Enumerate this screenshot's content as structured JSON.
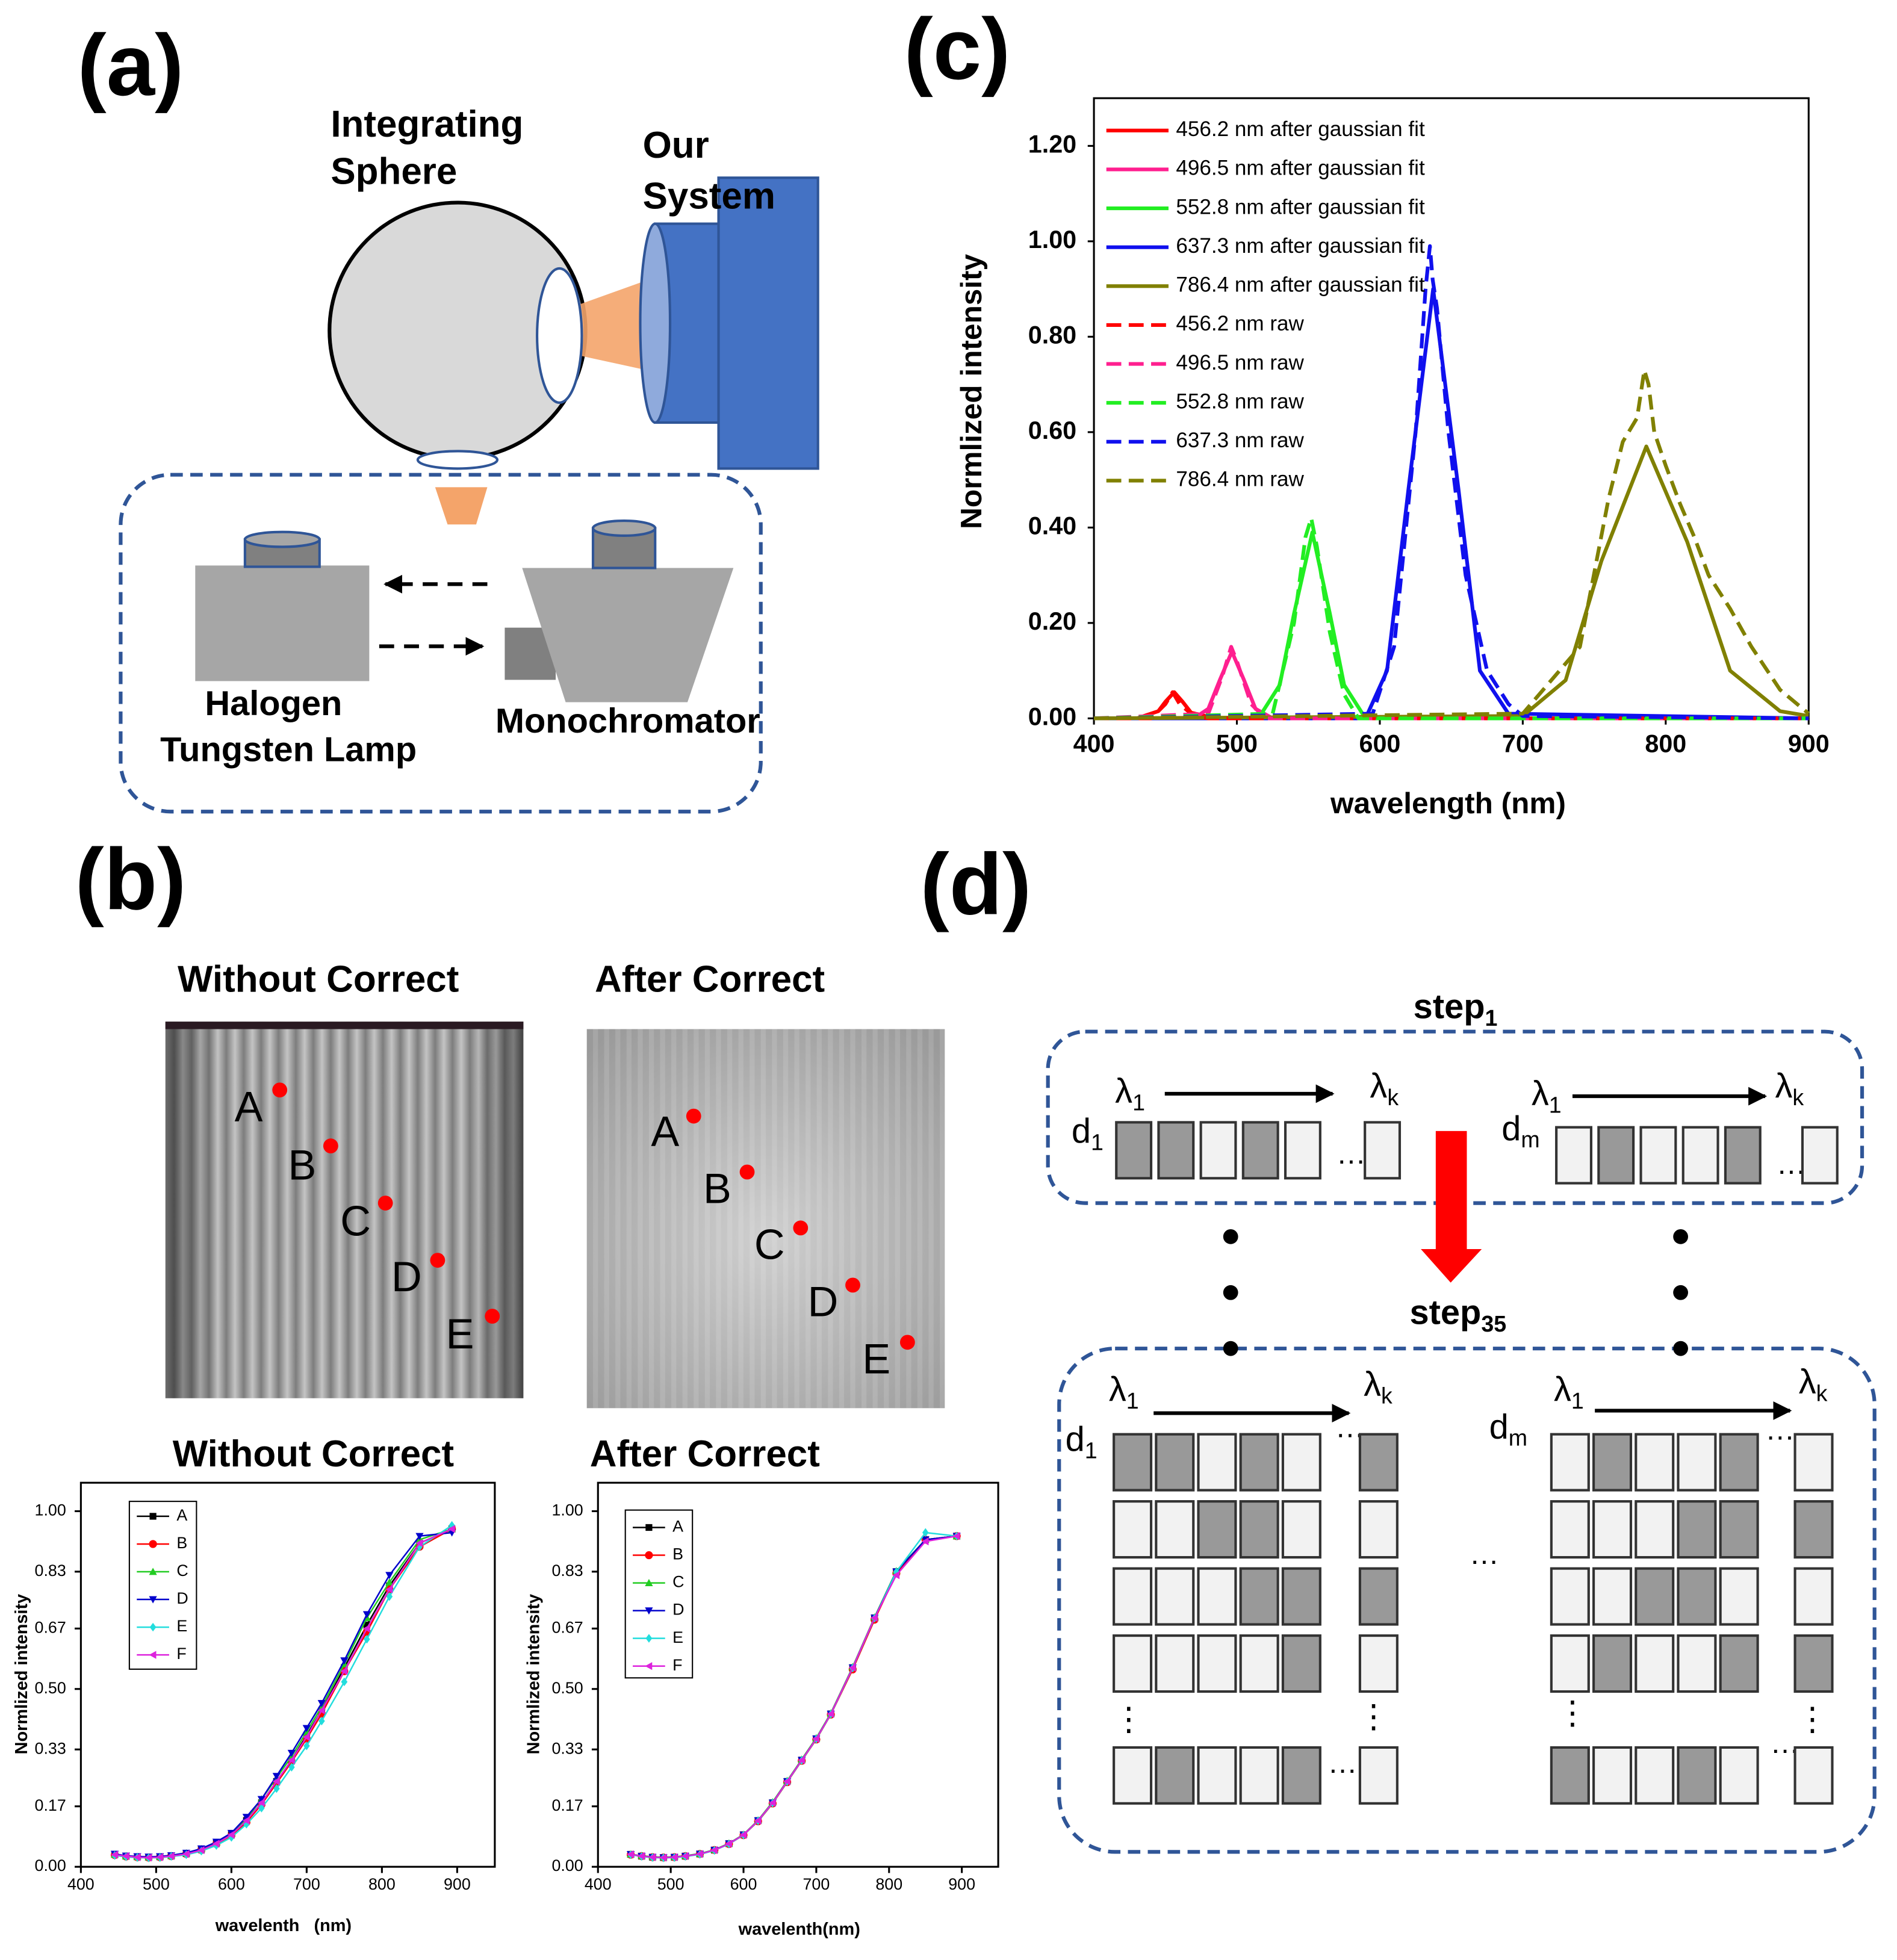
{
  "panel_labels": [
    "(a)",
    "(b)",
    "(c)",
    "(d)"
  ],
  "setup": {
    "sphere": [
      "Integrating",
      "Sphere"
    ],
    "system": [
      "Our",
      "System"
    ],
    "lamp": [
      "Halogen",
      "Tungsten Lamp"
    ],
    "monochromator": "Monochromator"
  },
  "images": [
    {
      "title": "Without Correct",
      "points": [
        "A",
        "B",
        "C",
        "D",
        "E"
      ]
    },
    {
      "title": "After Correct",
      "points": [
        "A",
        "B",
        "C",
        "D",
        "E"
      ]
    }
  ],
  "algorithm": {
    "steps": [
      {
        "text": "step",
        "sub": "1"
      },
      {
        "text": "step",
        "sub": "35"
      }
    ],
    "lambda": "λ",
    "first": "1",
    "last": "k",
    "d": "d",
    "d_last": "m",
    "ellipsis": "…",
    "vdots": "⋮"
  },
  "chart_data": [
    {
      "type": "line",
      "x_label": "wavelength (nm)",
      "y_label": "Normlized intensity",
      "xlim": [
        400,
        900
      ],
      "ylim": [
        0,
        1.3
      ],
      "xticks": [
        400,
        500,
        600,
        700,
        800,
        900
      ],
      "yticks": [
        {
          "value": 0,
          "label": "0.00"
        },
        {
          "value": 0.2,
          "label": "0.20"
        },
        {
          "value": 0.4,
          "label": "0.40"
        },
        {
          "value": 0.6,
          "label": "0.60"
        },
        {
          "value": 0.8,
          "label": "0.80"
        },
        {
          "value": 1,
          "label": "1.00"
        },
        {
          "value": 1.2,
          "label": "1.20"
        }
      ],
      "legend": "upper left",
      "series": [
        {
          "name": "456.2 nm after gaussian fit",
          "color": "#ff0000",
          "style": "solid",
          "x": [
            400,
            430,
            445,
            450,
            456.2,
            462,
            468,
            485,
            900
          ],
          "values": [
            0,
            0,
            0.015,
            0.035,
            0.055,
            0.035,
            0.012,
            0,
            0
          ]
        },
        {
          "name": "496.5 nm after gaussian fit",
          "color": "#ff1f8f",
          "style": "solid",
          "x": [
            400,
            470,
            480,
            488,
            496.5,
            505,
            513,
            525,
            900
          ],
          "values": [
            0,
            0,
            0.02,
            0.08,
            0.14,
            0.08,
            0.02,
            0,
            0
          ]
        },
        {
          "name": "552.8 nm after gaussian fit",
          "color": "#22ee22",
          "style": "solid",
          "x": [
            400,
            515,
            530,
            540,
            552.8,
            565,
            575,
            590,
            900
          ],
          "values": [
            0,
            0,
            0.07,
            0.22,
            0.39,
            0.22,
            0.07,
            0,
            0
          ]
        },
        {
          "name": "637.3 nm after gaussian fit",
          "color": "#1010ee",
          "style": "solid",
          "x": [
            400,
            590,
            605,
            620,
            637.3,
            655,
            670,
            690,
            900
          ],
          "values": [
            0,
            0,
            0.1,
            0.48,
            0.9,
            0.48,
            0.1,
            0.01,
            0
          ]
        },
        {
          "name": "786.4 nm after gaussian fit",
          "color": "#808000",
          "style": "solid",
          "x": [
            400,
            700,
            730,
            755,
            786.4,
            815,
            845,
            880,
            900
          ],
          "values": [
            0,
            0.005,
            0.08,
            0.33,
            0.57,
            0.37,
            0.1,
            0.015,
            0.005
          ]
        },
        {
          "name": "456.2 nm raw",
          "color": "#ff0000",
          "style": "dashed",
          "x": [
            400,
            440,
            450,
            455,
            460,
            470,
            480,
            900
          ],
          "values": [
            0,
            0,
            0.03,
            0.055,
            0.03,
            0.005,
            0,
            0
          ]
        },
        {
          "name": "496.5 nm raw",
          "color": "#ff1f8f",
          "style": "dashed",
          "x": [
            400,
            480,
            490,
            496,
            500,
            510,
            520,
            900
          ],
          "values": [
            0,
            0.01,
            0.09,
            0.15,
            0.12,
            0.03,
            0,
            0
          ]
        },
        {
          "name": "552.8 nm raw",
          "color": "#22ee22",
          "style": "dashed",
          "x": [
            400,
            525,
            540,
            548,
            552,
            556,
            565,
            575,
            585,
            900
          ],
          "values": [
            0,
            0.01,
            0.2,
            0.38,
            0.42,
            0.36,
            0.18,
            0.05,
            0,
            0
          ]
        },
        {
          "name": "637.3 nm raw",
          "color": "#1010ee",
          "style": "dashed",
          "x": [
            400,
            595,
            610,
            625,
            632,
            635,
            637,
            640,
            648,
            660,
            675,
            690,
            700,
            900
          ],
          "values": [
            0,
            0.01,
            0.15,
            0.6,
            0.9,
            0.99,
            0.92,
            0.86,
            0.6,
            0.3,
            0.1,
            0.03,
            0.005,
            0
          ]
        },
        {
          "name": "786.4 nm raw",
          "color": "#808000",
          "style": "dashed",
          "x": [
            400,
            700,
            740,
            760,
            770,
            780,
            785,
            788,
            792,
            800,
            810,
            820,
            830,
            845,
            860,
            880,
            900
          ],
          "values": [
            0,
            0.01,
            0.15,
            0.46,
            0.58,
            0.63,
            0.73,
            0.7,
            0.6,
            0.53,
            0.45,
            0.38,
            0.3,
            0.23,
            0.15,
            0.06,
            0.01
          ]
        }
      ]
    },
    {
      "type": "line",
      "title": "Without Correct",
      "x_label": "wavelenth   (nm)",
      "y_label": "Normlized intensity",
      "xlim": [
        400,
        950
      ],
      "ylim": [
        0,
        1.08
      ],
      "xticks": [
        400,
        500,
        600,
        700,
        800,
        900
      ],
      "yticks": [
        {
          "value": 0,
          "label": "0.00"
        },
        0.17,
        0.33,
        {
          "value": 0.5,
          "label": "0.50"
        },
        0.67,
        0.83,
        {
          "value": 1,
          "label": "1.00"
        }
      ],
      "legend": "upper left",
      "x": [
        445,
        460,
        475,
        490,
        505,
        520,
        540,
        560,
        580,
        600,
        620,
        640,
        660,
        680,
        700,
        720,
        750,
        780,
        810,
        850,
        893
      ],
      "series": [
        {
          "name": "A",
          "color": "#000000",
          "marker": "square",
          "values": [
            0.035,
            0.03,
            0.028,
            0.027,
            0.028,
            0.031,
            0.037,
            0.048,
            0.066,
            0.09,
            0.13,
            0.18,
            0.24,
            0.3,
            0.37,
            0.44,
            0.56,
            0.68,
            0.79,
            0.91,
            0.95
          ]
        },
        {
          "name": "B",
          "color": "#ff0000",
          "marker": "circle",
          "values": [
            0.033,
            0.029,
            0.027,
            0.026,
            0.027,
            0.03,
            0.036,
            0.047,
            0.064,
            0.088,
            0.125,
            0.175,
            0.235,
            0.295,
            0.36,
            0.43,
            0.55,
            0.66,
            0.78,
            0.9,
            0.95
          ]
        },
        {
          "name": "C",
          "color": "#22cc22",
          "marker": "triangle-up",
          "values": [
            0.034,
            0.03,
            0.028,
            0.027,
            0.028,
            0.031,
            0.038,
            0.05,
            0.068,
            0.093,
            0.135,
            0.19,
            0.25,
            0.31,
            0.38,
            0.45,
            0.57,
            0.7,
            0.8,
            0.92,
            0.95
          ]
        },
        {
          "name": "D",
          "color": "#0000cc",
          "marker": "triangle-down",
          "values": [
            0.036,
            0.031,
            0.029,
            0.028,
            0.029,
            0.032,
            0.039,
            0.051,
            0.07,
            0.095,
            0.14,
            0.19,
            0.255,
            0.32,
            0.39,
            0.46,
            0.58,
            0.71,
            0.82,
            0.93,
            0.94
          ]
        },
        {
          "name": "E",
          "color": "#22dddd",
          "marker": "diamond",
          "values": [
            0.032,
            0.028,
            0.026,
            0.025,
            0.026,
            0.029,
            0.034,
            0.044,
            0.06,
            0.083,
            0.12,
            0.165,
            0.22,
            0.28,
            0.34,
            0.41,
            0.52,
            0.64,
            0.76,
            0.9,
            0.96
          ]
        },
        {
          "name": "F",
          "color": "#dd22dd",
          "marker": "triangle-left",
          "values": [
            0.034,
            0.03,
            0.027,
            0.026,
            0.027,
            0.03,
            0.036,
            0.047,
            0.065,
            0.09,
            0.13,
            0.18,
            0.24,
            0.3,
            0.365,
            0.44,
            0.55,
            0.67,
            0.78,
            0.91,
            0.95
          ]
        }
      ]
    },
    {
      "type": "line",
      "title": "After Correct",
      "x_label": "wavelenth(nm)",
      "y_label": "Normlized intensity",
      "xlim": [
        400,
        950
      ],
      "ylim": [
        0,
        1.08
      ],
      "xticks": [
        400,
        500,
        600,
        700,
        800,
        900
      ],
      "yticks": [
        {
          "value": 0,
          "label": "0.00"
        },
        0.17,
        0.33,
        {
          "value": 0.5,
          "label": "0.50"
        },
        0.67,
        0.83,
        {
          "value": 1,
          "label": "1.00"
        }
      ],
      "legend": "upper left",
      "x": [
        445,
        460,
        475,
        490,
        505,
        520,
        540,
        560,
        580,
        600,
        620,
        640,
        660,
        680,
        700,
        720,
        750,
        780,
        810,
        850,
        893
      ],
      "series": [
        {
          "name": "A",
          "color": "#000000",
          "marker": "square",
          "values": [
            0.035,
            0.03,
            0.027,
            0.026,
            0.027,
            0.03,
            0.036,
            0.047,
            0.065,
            0.09,
            0.13,
            0.18,
            0.24,
            0.3,
            0.36,
            0.43,
            0.56,
            0.7,
            0.83,
            0.92,
            0.93
          ]
        },
        {
          "name": "B",
          "color": "#ff0000",
          "marker": "circle",
          "values": [
            0.034,
            0.03,
            0.027,
            0.026,
            0.027,
            0.03,
            0.036,
            0.047,
            0.064,
            0.089,
            0.128,
            0.178,
            0.238,
            0.298,
            0.358,
            0.428,
            0.555,
            0.695,
            0.825,
            0.92,
            0.93
          ]
        },
        {
          "name": "C",
          "color": "#22cc22",
          "marker": "triangle-up",
          "values": [
            0.035,
            0.031,
            0.028,
            0.027,
            0.028,
            0.031,
            0.037,
            0.048,
            0.066,
            0.091,
            0.131,
            0.182,
            0.242,
            0.302,
            0.362,
            0.432,
            0.562,
            0.702,
            0.832,
            0.92,
            0.93
          ]
        },
        {
          "name": "D",
          "color": "#0000cc",
          "marker": "triangle-down",
          "values": [
            0.035,
            0.03,
            0.027,
            0.026,
            0.027,
            0.03,
            0.036,
            0.047,
            0.065,
            0.09,
            0.13,
            0.18,
            0.24,
            0.3,
            0.36,
            0.43,
            0.56,
            0.7,
            0.83,
            0.92,
            0.93
          ]
        },
        {
          "name": "E",
          "color": "#22dddd",
          "marker": "diamond",
          "values": [
            0.034,
            0.029,
            0.026,
            0.025,
            0.026,
            0.029,
            0.035,
            0.046,
            0.064,
            0.089,
            0.129,
            0.179,
            0.239,
            0.299,
            0.359,
            0.429,
            0.559,
            0.699,
            0.829,
            0.94,
            0.93
          ]
        },
        {
          "name": "F",
          "color": "#dd22dd",
          "marker": "triangle-left",
          "values": [
            0.035,
            0.03,
            0.027,
            0.026,
            0.027,
            0.03,
            0.036,
            0.047,
            0.065,
            0.09,
            0.13,
            0.18,
            0.24,
            0.3,
            0.36,
            0.43,
            0.56,
            0.7,
            0.82,
            0.915,
            0.93
          ]
        }
      ]
    }
  ]
}
